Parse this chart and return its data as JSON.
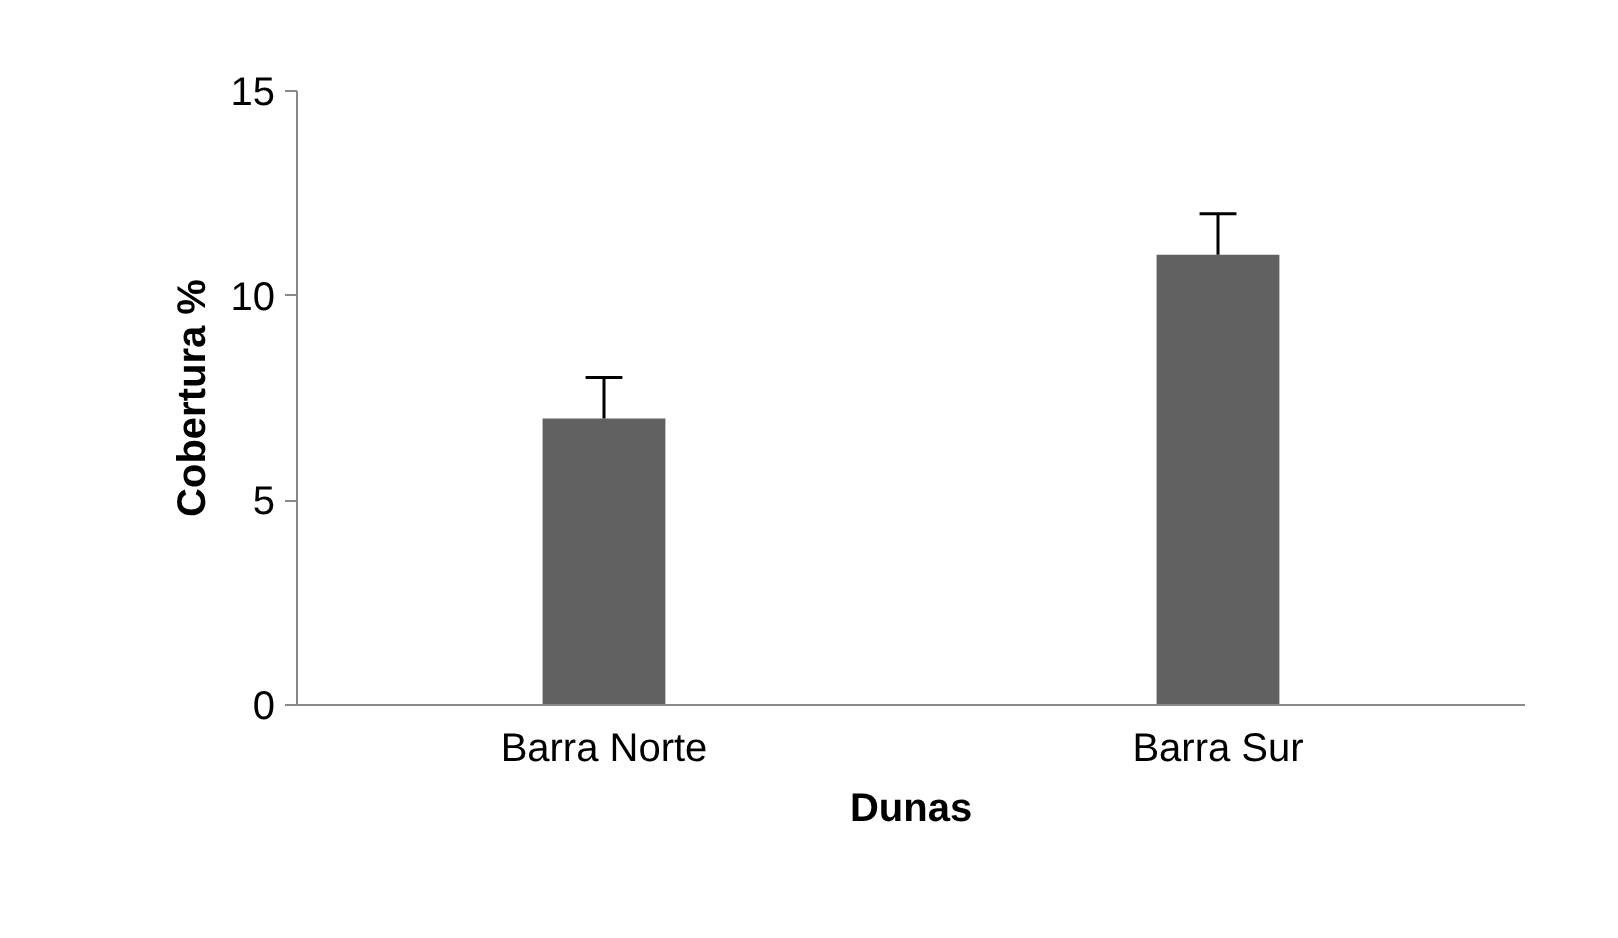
{
  "chart_data": {
    "type": "bar",
    "xlabel": "Dunas",
    "ylabel": "Cobertura %",
    "categories": [
      "Barra Norte",
      "Barra Sur"
    ],
    "values": [
      7,
      11
    ],
    "color": "#616161",
    "errors": [
      [
        7,
        8
      ],
      [
        11,
        12
      ]
    ],
    "ylim": [
      0,
      15
    ],
    "yticks": [
      0,
      5,
      10,
      15
    ],
    "grid": false
  }
}
